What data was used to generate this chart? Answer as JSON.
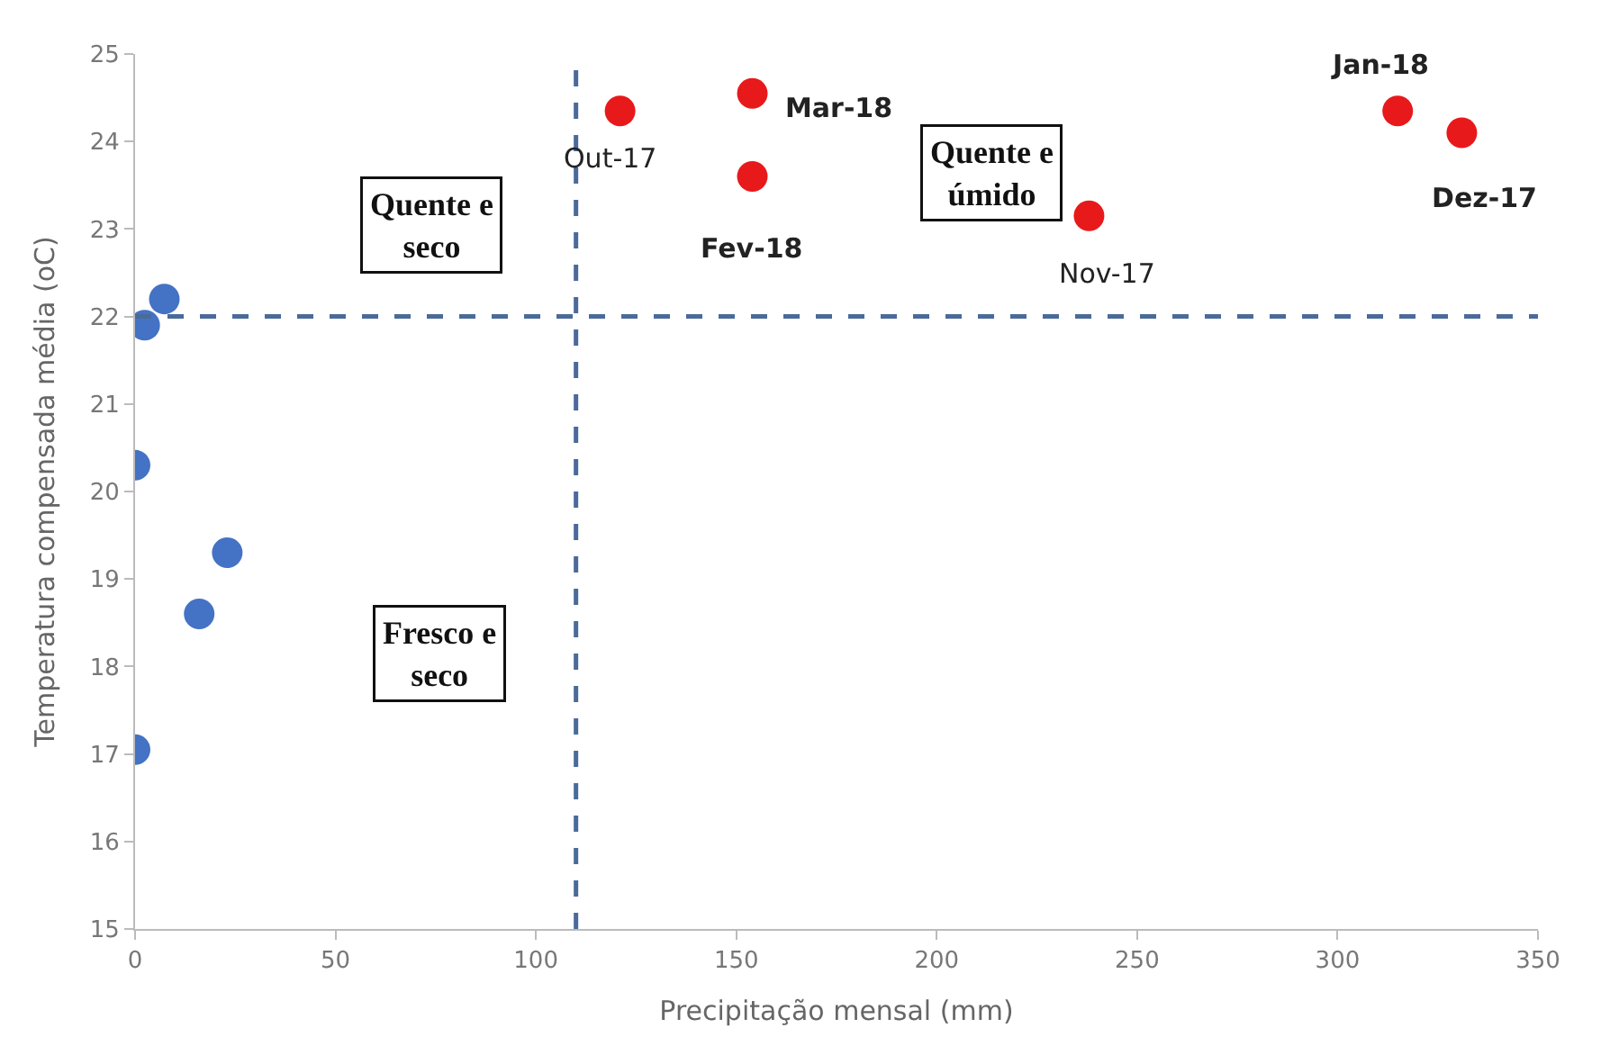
{
  "chart_data": {
    "type": "scatter",
    "xlabel": "Precipitação mensal (mm)",
    "ylabel": "Temperatura compensada média (oC)",
    "xlim": [
      0,
      350
    ],
    "xticks": [
      0,
      50,
      100,
      150,
      200,
      250,
      300,
      350
    ],
    "ylim": [
      15,
      25
    ],
    "yticks": [
      15,
      16,
      17,
      18,
      19,
      20,
      21,
      22,
      23,
      24,
      25
    ],
    "marker": "circle",
    "series": [
      {
        "color": "#4472c4",
        "x": [
          2.4,
          7.3,
          0,
          16,
          23,
          0
        ],
        "values": [
          21.9,
          22.2,
          20.3,
          18.6,
          19.3,
          17.05
        ]
      },
      {
        "color": "#e8191b",
        "x": [
          121,
          154,
          154,
          238,
          315,
          331
        ],
        "values": [
          24.35,
          24.55,
          23.6,
          23.15,
          24.35,
          24.1
        ]
      }
    ],
    "ref_lines": [
      {
        "axis": "x",
        "value": 110,
        "color": "#4a6a9a",
        "line_style": "dashed"
      },
      {
        "axis": "y",
        "value": 22,
        "color": "#4a6a9a",
        "line_style": "dashed"
      }
    ],
    "annotations": [
      {
        "text": "Out-17",
        "x": 121,
        "y": 24.35
      },
      {
        "text": "Mar-18",
        "x": 154,
        "y": 24.55
      },
      {
        "text": "Fev-18",
        "x": 154,
        "y": 23.6
      },
      {
        "text": "Nov-17",
        "x": 238,
        "y": 23.15
      },
      {
        "text": "Jan-18",
        "x": 315,
        "y": 24.35
      },
      {
        "text": "Dez-17",
        "x": 331,
        "y": 24.1
      },
      "Quente e seco",
      "Quente e úmido",
      "Fresco e seco"
    ]
  }
}
